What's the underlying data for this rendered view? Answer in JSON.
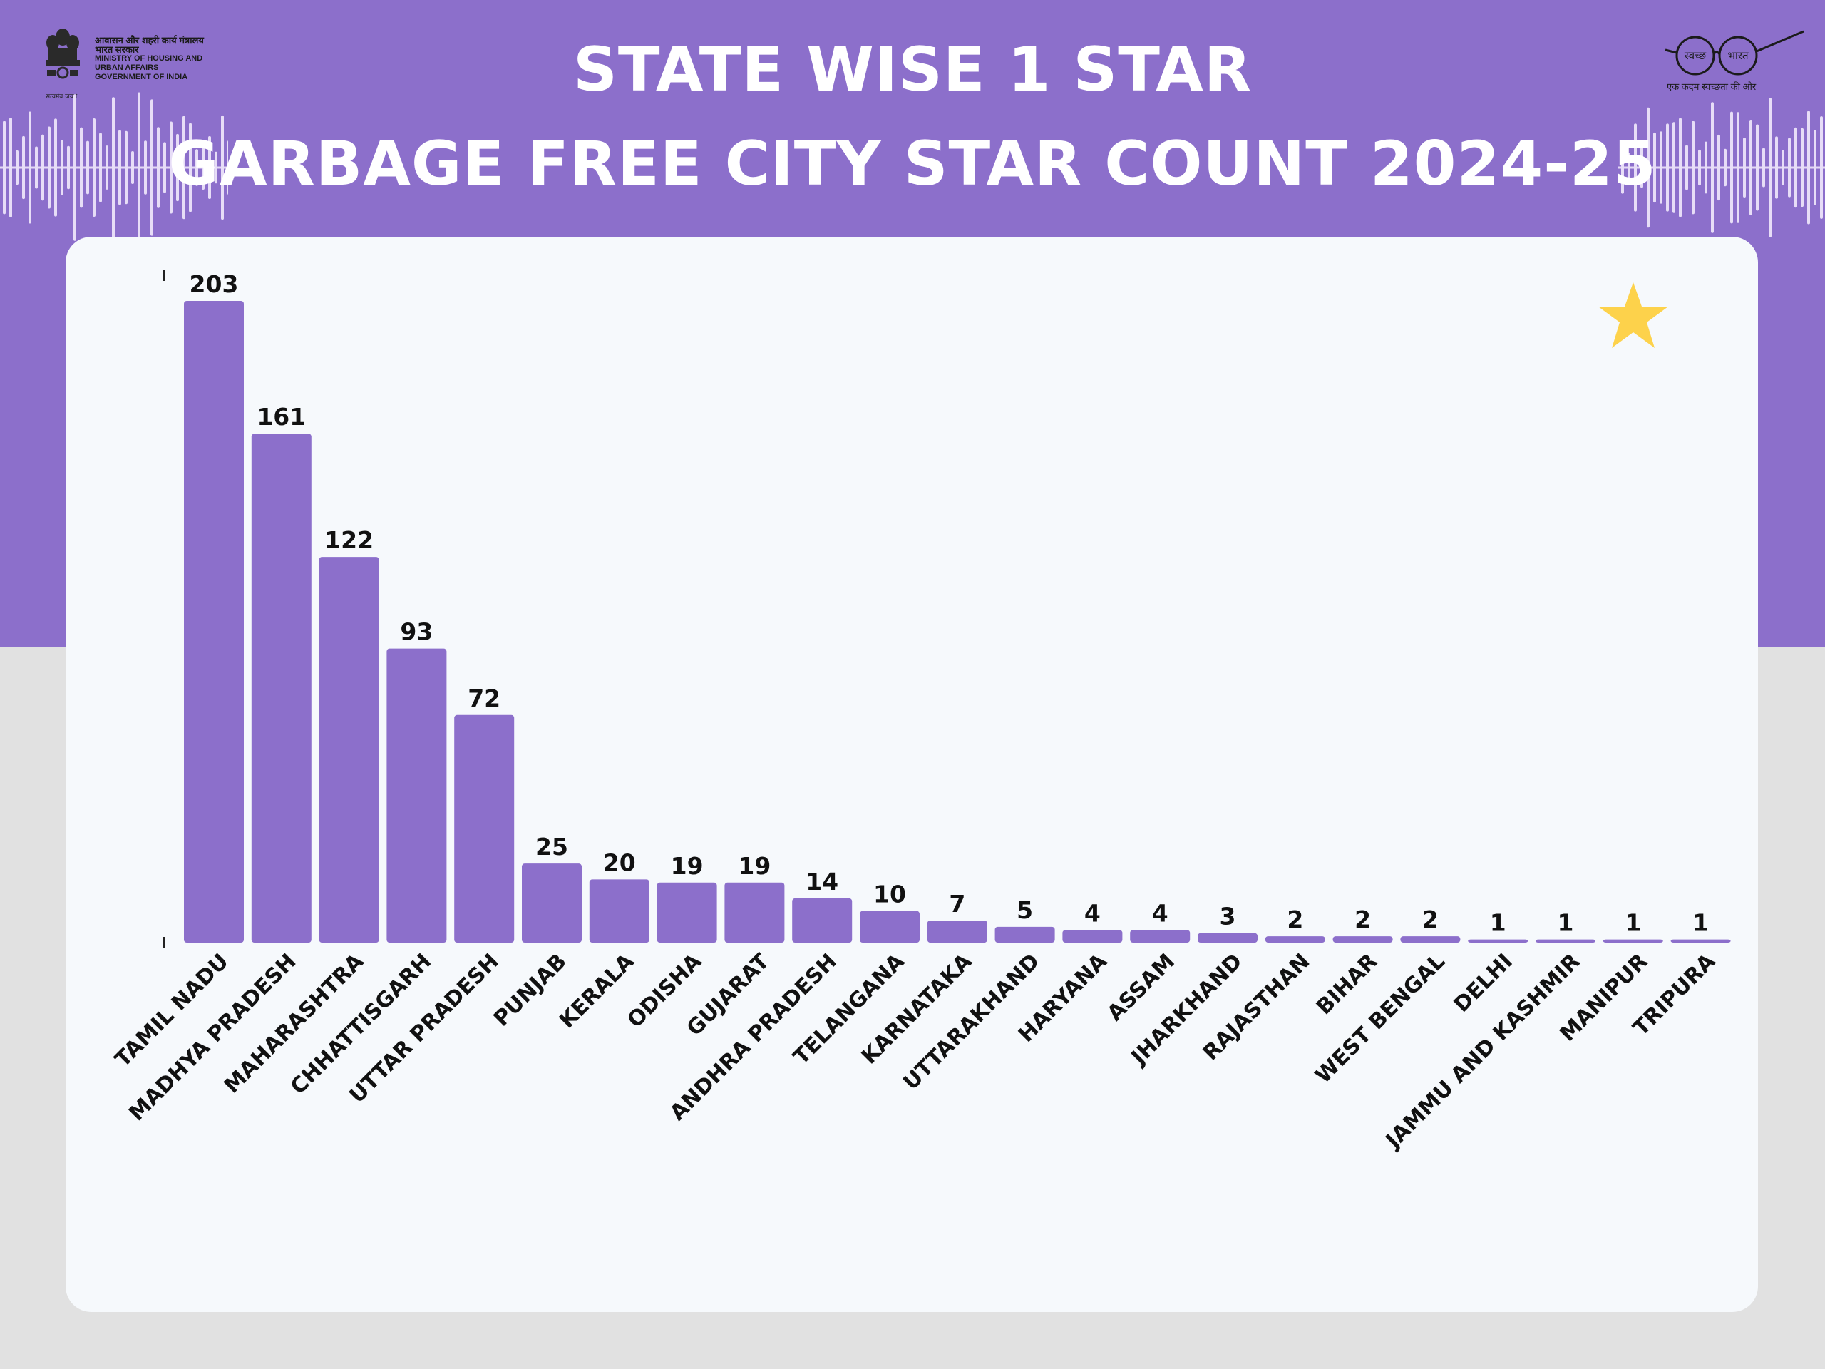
{
  "header": {
    "title_line1": "STATE WISE 1 STAR",
    "title_line2": "GARBAGE FREE CITY STAR COUNT 2024-25",
    "ministry_hindi_1": "आवासन और शहरी कार्य मंत्रालय",
    "ministry_hindi_2": "भारत सरकार",
    "ministry_en_1": "MINISTRY OF HOUSING AND",
    "ministry_en_2": "URBAN AFFAIRS",
    "ministry_en_3": "GOVERNMENT OF INDIA",
    "emblem_motto": "सत्यमेव जयते",
    "swachh_left": "स्वच्छ",
    "swachh_right": "भारत",
    "swachh_tagline": "एक कदम स्वच्छता की ओर"
  },
  "colors": {
    "header_bg": "#8c6fcb",
    "bar": "#8c6fcb",
    "card": "#f6f9fc",
    "page_bg": "#e1e1e1",
    "star": "#fdd24b"
  },
  "icons": [
    "national-emblem-icon",
    "swachh-bharat-glasses-icon",
    "sound-wave-icon",
    "star-icon"
  ],
  "chart_data": {
    "type": "bar",
    "title": "STATE WISE 1 STAR GARBAGE FREE CITY STAR COUNT 2024-25",
    "xlabel": "",
    "ylabel": "",
    "ylim": [
      0,
      203
    ],
    "grid": false,
    "categories": [
      "TAMIL NADU",
      "MADHYA PRADESH",
      "MAHARASHTRA",
      "CHHATTISGARH",
      "UTTAR PRADESH",
      "PUNJAB",
      "KERALA",
      "ODISHA",
      "GUJARAT",
      "ANDHRA PRADESH",
      "TELANGANA",
      "KARNATAKA",
      "UTTARAKHAND",
      "HARYANA",
      "ASSAM",
      "JHARKHAND",
      "RAJASTHAN",
      "BIHAR",
      "WEST BENGAL",
      "DELHI",
      "JAMMU AND KASHMIR",
      "MANIPUR",
      "TRIPURA"
    ],
    "values": [
      203,
      161,
      122,
      93,
      72,
      25,
      20,
      19,
      19,
      14,
      10,
      7,
      5,
      4,
      4,
      3,
      2,
      2,
      2,
      1,
      1,
      1,
      1
    ],
    "data_labels": [
      "203",
      "161",
      "122",
      "93",
      "72",
      "25",
      "20",
      "19",
      "19",
      "14",
      "10",
      "7",
      "5",
      "4",
      "4",
      "3",
      "2",
      "2",
      "2",
      "1",
      "1",
      "1",
      "1"
    ]
  }
}
